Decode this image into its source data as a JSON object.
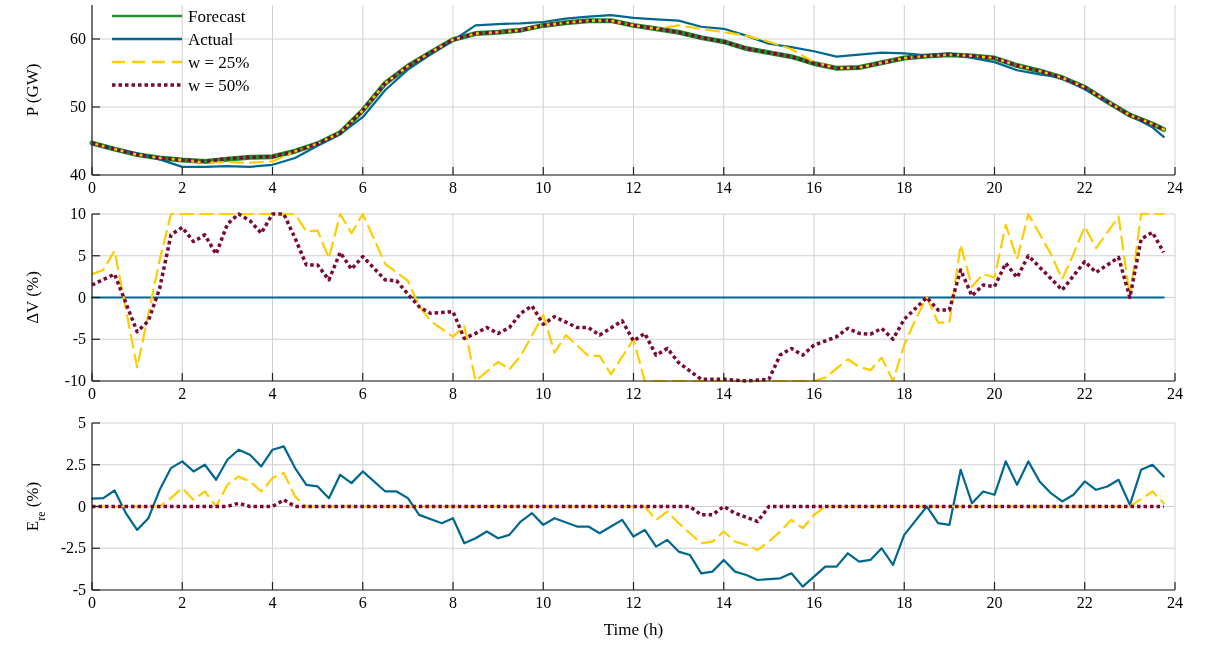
{
  "chart_data": [
    {
      "type": "line",
      "ylabel": "P (GW)",
      "x": [
        0,
        0.5,
        1,
        1.5,
        2,
        2.5,
        3,
        3.5,
        4,
        4.5,
        5,
        5.5,
        6,
        6.5,
        7,
        7.5,
        8,
        8.5,
        9,
        9.5,
        10,
        10.5,
        11,
        11.5,
        12,
        12.5,
        13,
        13.5,
        14,
        14.5,
        15,
        15.5,
        16,
        16.5,
        17,
        17.5,
        18,
        18.5,
        19,
        19.5,
        20,
        20.5,
        21,
        21.5,
        22,
        22.5,
        23,
        23.5,
        23.75
      ],
      "xlim": [
        0,
        24
      ],
      "xticks": [
        0,
        2,
        4,
        6,
        8,
        10,
        12,
        14,
        16,
        18,
        20,
        22,
        24
      ],
      "ylim": [
        40,
        65
      ],
      "yticks": [
        40,
        50,
        60
      ],
      "grid": true,
      "legend": "top left",
      "series": [
        {
          "name": "Forecast",
          "color": "#1f8f2a",
          "line_style": "solid",
          "values": [
            44.7,
            43.8,
            43.0,
            42.5,
            42.2,
            42.0,
            42.3,
            42.6,
            42.7,
            43.5,
            44.6,
            46.2,
            49.5,
            53.5,
            56,
            58,
            59.9,
            60.8,
            61,
            61.3,
            62,
            62.4,
            62.7,
            62.7,
            62,
            61.5,
            61,
            60.2,
            59.6,
            58.6,
            58,
            57.4,
            56.4,
            55.7,
            55.8,
            56.5,
            57.2,
            57.5,
            57.7,
            57.5,
            57.2,
            56.1,
            55.3,
            54.3,
            52.9,
            50.8,
            48.8,
            47.5,
            46.7
          ]
        },
        {
          "name": "Actual",
          "color": "#00678f",
          "line_style": "solid",
          "values": [
            44.7,
            43.8,
            43.2,
            42.3,
            41.2,
            41.2,
            41.3,
            41.2,
            41.5,
            42.5,
            44.3,
            46,
            48.5,
            52.5,
            55.5,
            57.7,
            59.8,
            62,
            62.2,
            62.3,
            62.5,
            63,
            63.3,
            63.5,
            63.1,
            62.9,
            62.7,
            61.8,
            61.5,
            60.5,
            59.3,
            58.8,
            58.2,
            57.4,
            57.7,
            58,
            57.9,
            57.6,
            57.9,
            57.2,
            56.6,
            55.4,
            54.8,
            54.3,
            52.6,
            50.7,
            48.8,
            47,
            45.6
          ]
        },
        {
          "name": "w = 25%",
          "color": "#ffcc00",
          "line_style": "dashed",
          "values": [
            44.7,
            43.8,
            43.0,
            42.5,
            42.2,
            41.8,
            41.9,
            41.8,
            42.0,
            43.5,
            44.6,
            46.2,
            49.5,
            53.5,
            56,
            58,
            59.9,
            60.8,
            61,
            61.3,
            62,
            62.4,
            62.7,
            62.7,
            62,
            61.5,
            62,
            61.5,
            61,
            60.5,
            59.6,
            58.5,
            56.6,
            55.7,
            55.8,
            56.5,
            57.2,
            57.5,
            57.7,
            57.5,
            57.2,
            56.1,
            55.3,
            54.3,
            52.9,
            50.8,
            48.8,
            47.5,
            46.7
          ]
        },
        {
          "name": "w = 50%",
          "color": "#7a0a35",
          "line_style": "dotted",
          "values": [
            44.7,
            43.8,
            43.0,
            42.5,
            42.2,
            42.0,
            42.4,
            42.6,
            42.7,
            43.5,
            44.6,
            46.2,
            49.5,
            53.5,
            56,
            58,
            59.9,
            60.8,
            61,
            61.3,
            62,
            62.4,
            62.7,
            62.7,
            62,
            61.5,
            61,
            60.2,
            59.6,
            58.6,
            58,
            57.4,
            56.4,
            55.7,
            55.8,
            56.5,
            57.2,
            57.5,
            57.7,
            57.5,
            57.2,
            56.1,
            55.3,
            54.3,
            52.9,
            50.8,
            48.8,
            47.5,
            46.7
          ]
        }
      ]
    },
    {
      "type": "line",
      "ylabel": "ΔV (%)",
      "xlim": [
        0,
        24
      ],
      "xticks": [
        0,
        2,
        4,
        6,
        8,
        10,
        12,
        14,
        16,
        18,
        20,
        22,
        24
      ],
      "ylim": [
        -10,
        10
      ],
      "yticks": [
        -10,
        -5,
        0,
        5,
        10
      ],
      "grid": true,
      "series": [
        {
          "color": "#00678f",
          "line_style": "solid",
          "x": [
            0,
            23.75
          ],
          "values": [
            0,
            0
          ]
        },
        {
          "color": "#ffcc00",
          "line_style": "dashed",
          "x": [
            0,
            0.25,
            0.5,
            1,
            1.5,
            1.75,
            4.5,
            4.75,
            5,
            5.25,
            5.5,
            5.75,
            6,
            6.5,
            7,
            7.25,
            7.5,
            8,
            8.25,
            8.5,
            9,
            9.25,
            9.5,
            10,
            10.25,
            10.5,
            11,
            11.25,
            11.5,
            12,
            12.25,
            12.5,
            16,
            16.25,
            16.75,
            17,
            17.25,
            17.5,
            17.75,
            18,
            18.25,
            18.5,
            18.75,
            19,
            19.25,
            19.5,
            19.75,
            20,
            20.25,
            20.5,
            20.75,
            21.25,
            21.5,
            21.75,
            22,
            22.25,
            22.75,
            23,
            23.25,
            23.75
          ],
          "values": [
            2.8,
            3.3,
            5.6,
            -8.4,
            4.5,
            10,
            10,
            7.9,
            8,
            4.7,
            10,
            7.7,
            10,
            4,
            2,
            -1,
            -2.8,
            -4.7,
            -3.4,
            -10,
            -7.7,
            -8.6,
            -7,
            -2.1,
            -6.6,
            -4.5,
            -7,
            -7,
            -9.2,
            -5,
            -10,
            -10,
            -10,
            -9.6,
            -7.4,
            -8.3,
            -8.7,
            -7.2,
            -10,
            -5.7,
            -2.6,
            0,
            -3,
            -3,
            6.3,
            1.3,
            2.8,
            2.4,
            8.7,
            4.6,
            10,
            5.2,
            2.2,
            5.2,
            8.5,
            5.9,
            9.7,
            0,
            10,
            10
          ]
        },
        {
          "color": "#7a0a35",
          "line_style": "dotted",
          "x": [
            0,
            0.5,
            1,
            1.25,
            1.5,
            1.75,
            2,
            2.25,
            2.5,
            2.75,
            3,
            3.25,
            3.5,
            3.75,
            4,
            4.25,
            4.5,
            4.75,
            5,
            5.25,
            5.5,
            5.75,
            6,
            6.5,
            6.75,
            7,
            7.25,
            7.5,
            8,
            8.25,
            8.5,
            8.75,
            9,
            9.25,
            9.5,
            9.75,
            10,
            10.25,
            10.75,
            11,
            11.25,
            11.75,
            12,
            12.25,
            12.5,
            12.75,
            13,
            13.5,
            14,
            14.5,
            15,
            15.25,
            15.5,
            15.75,
            16,
            16.5,
            16.75,
            17,
            17.25,
            17.5,
            17.75,
            18,
            18.5,
            18.75,
            19,
            19.25,
            19.5,
            19.75,
            20,
            20.25,
            20.5,
            20.75,
            21.5,
            22,
            22.25,
            22.75,
            23,
            23.25,
            23.5,
            23.75
          ],
          "values": [
            1.5,
            2.8,
            -4.1,
            -2.8,
            1.1,
            7.5,
            8.4,
            6.7,
            7.5,
            5.2,
            8.8,
            10,
            9.2,
            7.7,
            10,
            10,
            7.1,
            3.9,
            3.9,
            2.1,
            5.4,
            3.4,
            4.9,
            2.1,
            2,
            0.4,
            -1.1,
            -1.9,
            -1.7,
            -4.9,
            -4.3,
            -3.6,
            -4.3,
            -3.6,
            -1.9,
            -1,
            -3.2,
            -2.3,
            -3.6,
            -3.6,
            -4.5,
            -2.8,
            -5.2,
            -4.3,
            -6.9,
            -6.1,
            -7.8,
            -9.8,
            -9.8,
            -10,
            -9.8,
            -6.9,
            -6.1,
            -6.9,
            -5.7,
            -4.7,
            -3.7,
            -4.3,
            -4.4,
            -3.7,
            -5,
            -2.6,
            0,
            -1.5,
            -1.5,
            3.3,
            0.2,
            1.5,
            1.3,
            4.1,
            2.4,
            5,
            0.9,
            4.3,
            3,
            4.8,
            0,
            7,
            7.8,
            5.4
          ]
        }
      ]
    },
    {
      "type": "line",
      "ylabel": "E$_{re}$ (%)",
      "xlabel": "Time (h)",
      "xlim": [
        0,
        24
      ],
      "xticks": [
        0,
        2,
        4,
        6,
        8,
        10,
        12,
        14,
        16,
        18,
        20,
        22,
        24
      ],
      "ylim": [
        -5,
        5
      ],
      "yticks": [
        -5,
        -2.5,
        0,
        2.5,
        5
      ],
      "grid": true,
      "series": [
        {
          "color": "#00678f",
          "line_style": "solid",
          "x": [
            0,
            0.25,
            0.5,
            0.75,
            1,
            1.25,
            1.5,
            1.75,
            2,
            2.25,
            2.5,
            2.75,
            3,
            3.25,
            3.5,
            3.75,
            4,
            4.25,
            4.5,
            4.75,
            5,
            5.25,
            5.5,
            5.75,
            6,
            6.5,
            6.75,
            7,
            7.25,
            7.75,
            8,
            8.25,
            8.5,
            8.75,
            9,
            9.25,
            9.5,
            9.75,
            10,
            10.25,
            10.75,
            11,
            11.25,
            11.5,
            11.75,
            12,
            12.25,
            12.5,
            12.75,
            13,
            13.25,
            13.5,
            13.75,
            14,
            14.25,
            14.5,
            14.75,
            15.25,
            15.5,
            15.75,
            16,
            16.25,
            16.5,
            16.75,
            17,
            17.25,
            17.5,
            17.75,
            18,
            18.5,
            18.75,
            19,
            19.25,
            19.5,
            19.75,
            20,
            20.25,
            20.5,
            20.75,
            21,
            21.25,
            21.5,
            21.75,
            22,
            22.25,
            22.5,
            22.75,
            23,
            23.25,
            23.5,
            23.75
          ],
          "values": [
            0.47,
            0.5,
            0.96,
            -0.4,
            -1.4,
            -0.7,
            1,
            2.3,
            2.7,
            2.1,
            2.5,
            1.6,
            2.8,
            3.4,
            3.1,
            2.4,
            3.4,
            3.6,
            2.3,
            1.3,
            1.2,
            0.5,
            1.9,
            1.4,
            2.1,
            0.9,
            0.9,
            0.5,
            -0.5,
            -1,
            -0.7,
            -2.2,
            -1.9,
            -1.5,
            -1.9,
            -1.7,
            -0.9,
            -0.4,
            -1.1,
            -0.7,
            -1.2,
            -1.2,
            -1.6,
            -1.2,
            -0.8,
            -1.8,
            -1.4,
            -2.4,
            -2,
            -2.7,
            -2.9,
            -4,
            -3.9,
            -3.2,
            -3.9,
            -4.1,
            -4.4,
            -4.3,
            -4,
            -4.8,
            -4.2,
            -3.6,
            -3.6,
            -2.8,
            -3.3,
            -3.2,
            -2.5,
            -3.5,
            -1.7,
            0,
            -1,
            -1.1,
            2.2,
            0.2,
            0.9,
            0.7,
            2.7,
            1.3,
            2.7,
            1.5,
            0.8,
            0.3,
            0.7,
            1.5,
            1,
            1.2,
            1.6,
            0.1,
            2.2,
            2.5,
            1.8
          ]
        },
        {
          "color": "#ffcc00",
          "line_style": "dashed",
          "x": [
            0,
            1.5,
            1.75,
            2,
            2.25,
            2.5,
            2.75,
            3,
            3.25,
            3.5,
            3.75,
            4,
            4.25,
            4.5,
            4.75,
            12.25,
            12.5,
            12.75,
            13,
            13.25,
            13.5,
            13.75,
            14,
            14.25,
            14.5,
            14.75,
            15,
            15.25,
            15.5,
            15.75,
            16,
            16.25,
            23,
            23.5,
            23.75
          ],
          "values": [
            0,
            0,
            0.5,
            1.1,
            0.4,
            0.9,
            0,
            1.3,
            1.8,
            1.5,
            0.9,
            1.7,
            2,
            0.6,
            0,
            0,
            -0.8,
            -0.3,
            -1,
            -1.6,
            -2.2,
            -2.1,
            -1.5,
            -2.1,
            -2.3,
            -2.6,
            -2.1,
            -1.5,
            -0.8,
            -1.3,
            -0.5,
            0,
            0,
            0.9,
            0.2
          ]
        },
        {
          "color": "#7a0a35",
          "line_style": "dotted",
          "x": [
            0,
            3,
            3.25,
            3.5,
            4,
            4.25,
            4.5,
            13.25,
            13.5,
            13.75,
            14,
            14.25,
            14.75,
            15,
            23.75
          ],
          "values": [
            0,
            0,
            0.2,
            0,
            0,
            0.4,
            0,
            0,
            -0.5,
            -0.5,
            0,
            -0.4,
            -0.9,
            0,
            0
          ]
        }
      ]
    }
  ]
}
